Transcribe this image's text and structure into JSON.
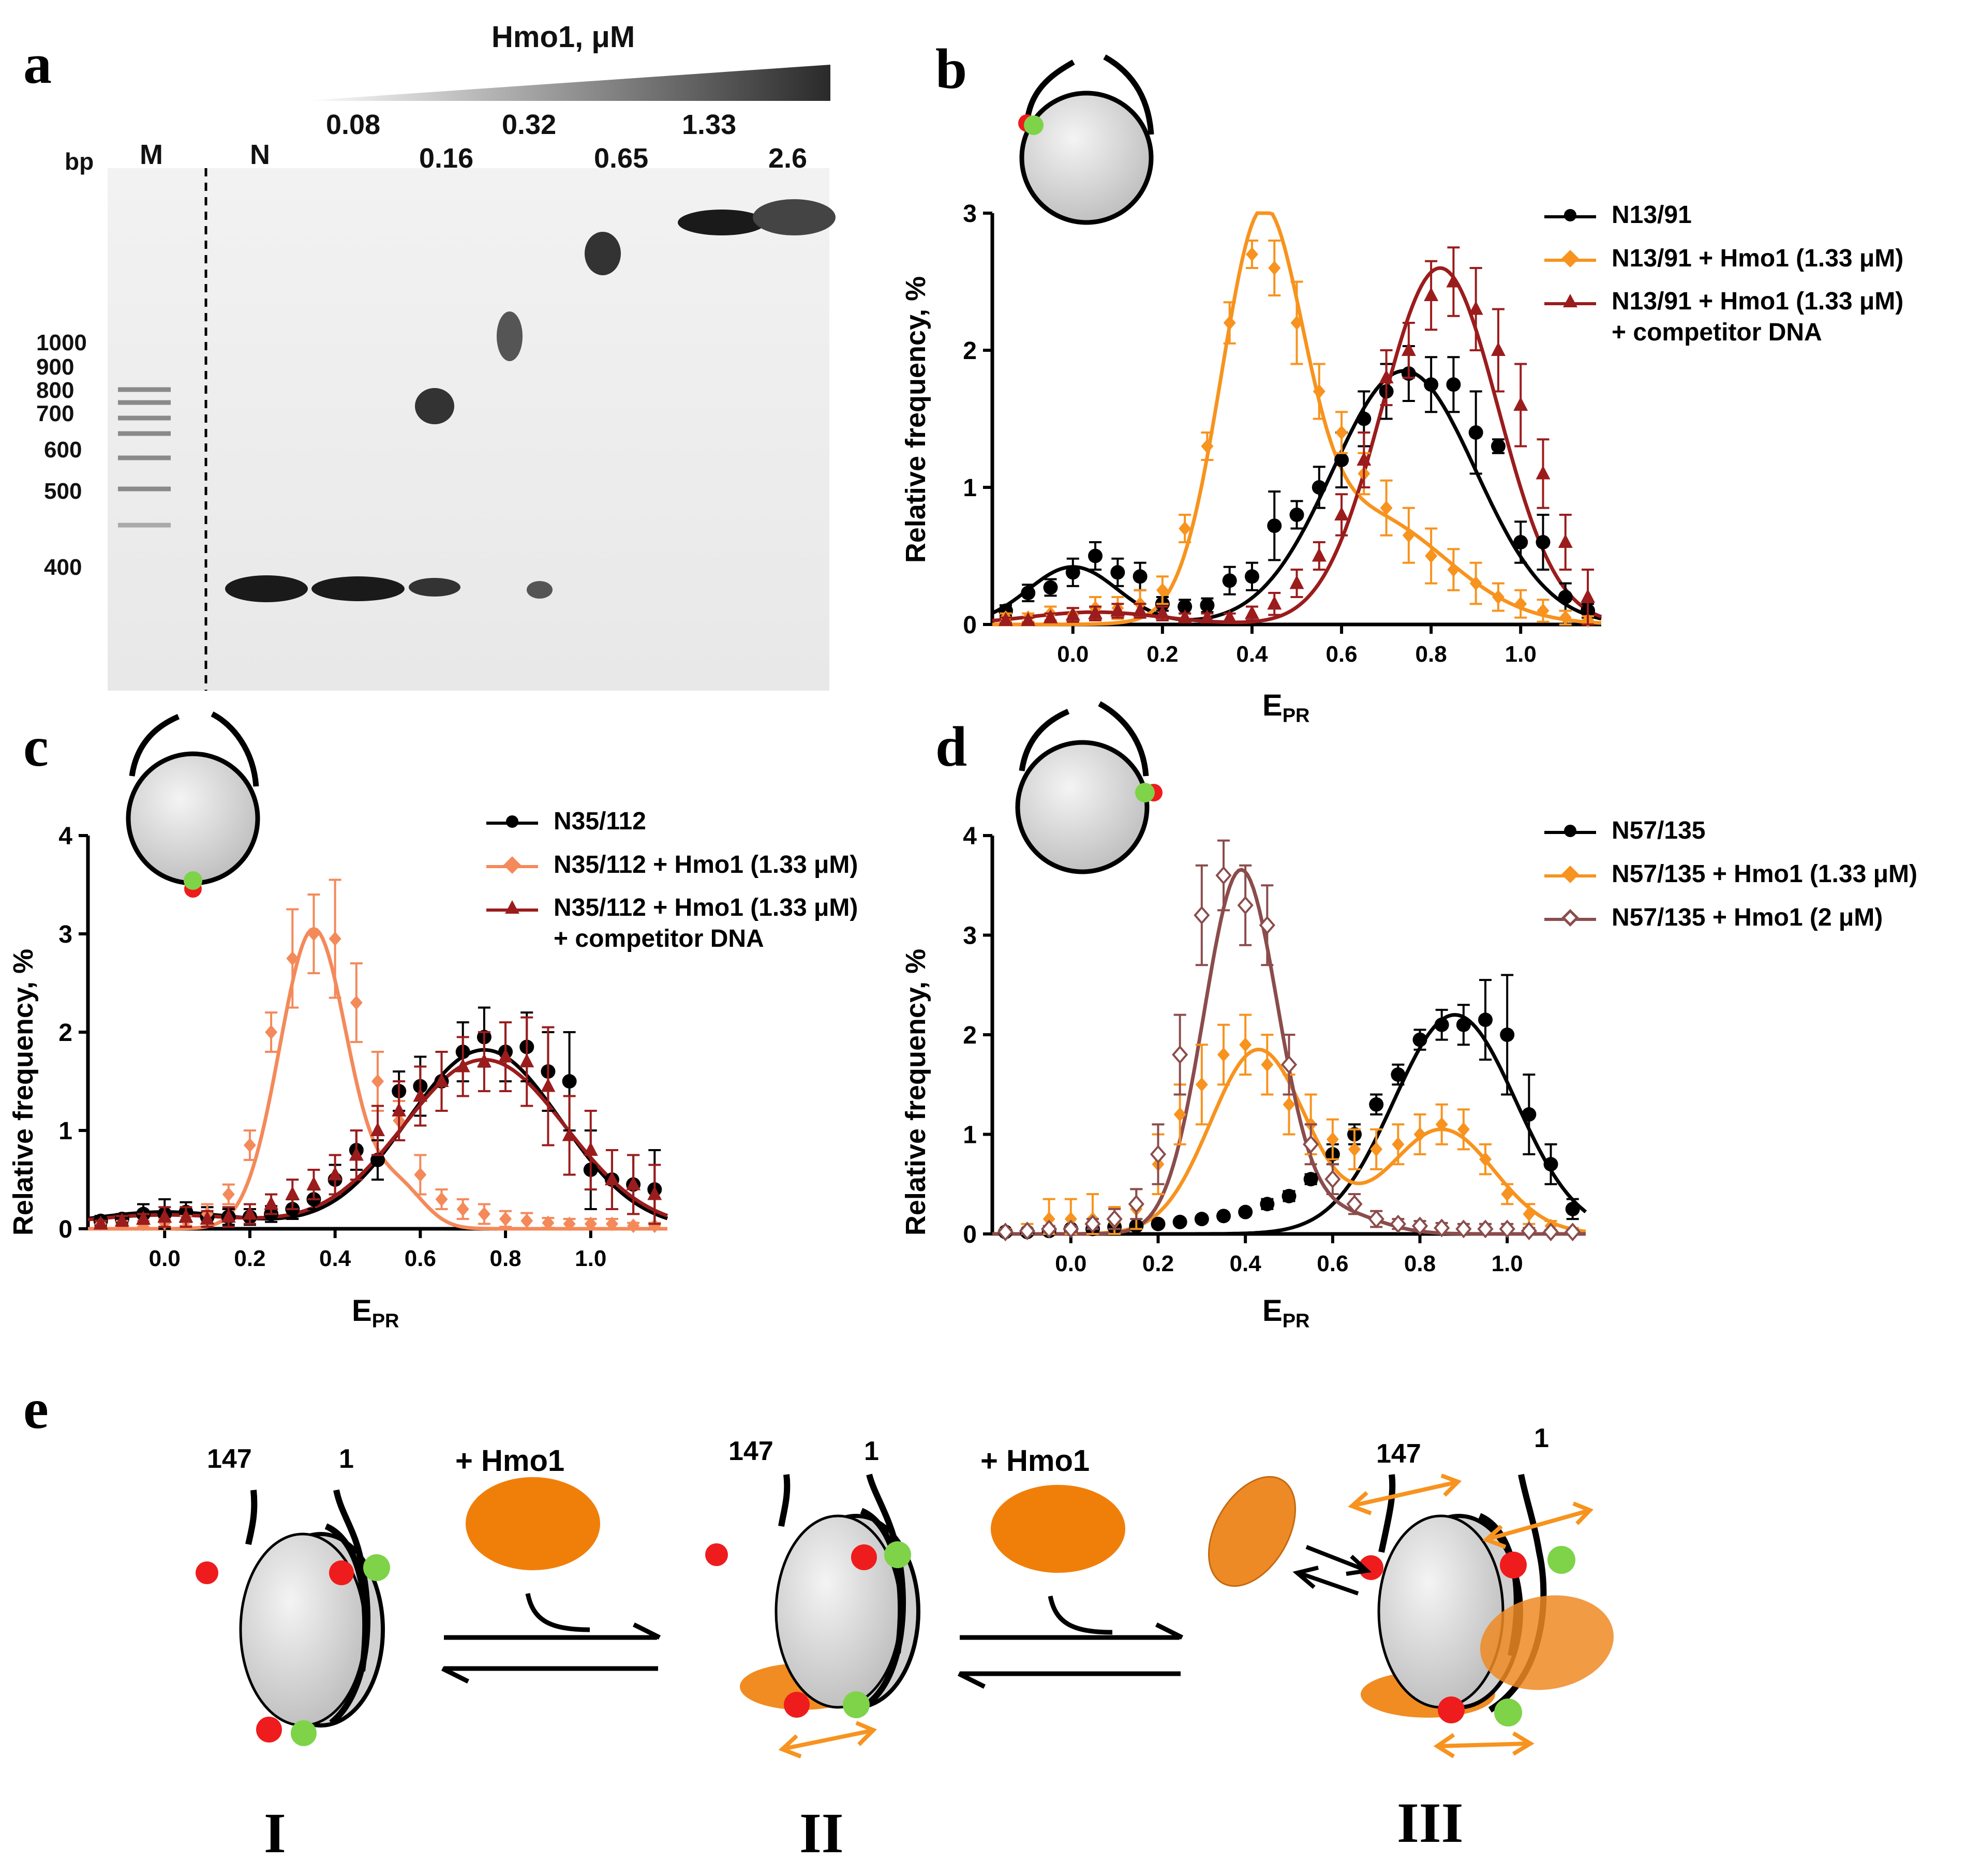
{
  "panels": {
    "a": "a",
    "b": "b",
    "c": "c",
    "d": "d",
    "e": "e"
  },
  "gel": {
    "title": "Hmo1, μM",
    "bp_label": "bp",
    "lane_labels": [
      "M",
      "N"
    ],
    "concentrations": [
      "0.08",
      "0.16",
      "0.32",
      "0.65",
      "1.33",
      "2.6"
    ],
    "ladder": [
      "1000",
      "900",
      "800",
      "700",
      "600",
      "500",
      "400"
    ]
  },
  "plots": {
    "ylabel": "Relative frequency, %",
    "xlabel_main": "E",
    "xlabel_sub": "PR",
    "xticks": [
      "0.0",
      "0.2",
      "0.4",
      "0.6",
      "0.8",
      "1.0"
    ]
  },
  "legend_b": {
    "s1": "N13/91",
    "s2": "N13/91 + Hmo1 (1.33 μM)",
    "s3a": "N13/91 + Hmo1 (1.33 μM)",
    "s3b": "+ competitor DNA"
  },
  "legend_c": {
    "s1": "N35/112",
    "s2": "N35/112 + Hmo1 (1.33 μM)",
    "s3a": "N35/112 + Hmo1 (1.33 μM)",
    "s3b": "+ competitor DNA"
  },
  "legend_d": {
    "s1": "N57/135",
    "s2": "N57/135 + Hmo1 (1.33 μM)",
    "s3": "N57/135 + Hmo1 (2 μM)"
  },
  "scheme": {
    "step_label": "+ Hmo1",
    "end_left": "147",
    "end_right": "1",
    "stages": [
      "I",
      "II",
      "III"
    ]
  },
  "colors": {
    "free": "#000000",
    "orange": "#f7931e",
    "darkred": "#9b1c1c",
    "salmon": "#f4895a",
    "brown": "#8b4c4c",
    "hmo1": "#f07f0a",
    "donor": "#7ed348",
    "acceptor": "#ee1c1c"
  },
  "chart_data": [
    {
      "panel": "b",
      "type": "scatter",
      "xlabel": "EPR",
      "ylabel": "Relative frequency, %",
      "xlim": [
        -0.18,
        1.18
      ],
      "ylim": [
        0,
        3
      ],
      "yticks": [
        0,
        1,
        2,
        3
      ],
      "x": [
        -0.15,
        -0.1,
        -0.05,
        0.0,
        0.05,
        0.1,
        0.15,
        0.2,
        0.25,
        0.3,
        0.35,
        0.4,
        0.45,
        0.5,
        0.55,
        0.6,
        0.65,
        0.7,
        0.75,
        0.8,
        0.85,
        0.9,
        0.95,
        1.0,
        1.05,
        1.1,
        1.15
      ],
      "series": [
        {
          "name": "N13/91",
          "color": "#000000",
          "marker": "circle",
          "values": [
            0.1,
            0.23,
            0.27,
            0.38,
            0.5,
            0.38,
            0.35,
            0.15,
            0.13,
            0.14,
            0.32,
            0.35,
            0.72,
            0.8,
            1.0,
            1.2,
            1.5,
            1.7,
            1.83,
            1.75,
            1.75,
            1.4,
            1.3,
            0.6,
            0.6,
            0.2,
            0.1
          ],
          "errors": [
            0.04,
            0.06,
            0.06,
            0.1,
            0.1,
            0.1,
            0.1,
            0.05,
            0.05,
            0.05,
            0.1,
            0.1,
            0.25,
            0.1,
            0.15,
            0.2,
            0.2,
            0.2,
            0.2,
            0.2,
            0.2,
            0.3,
            0.05,
            0.15,
            0.2,
            0.1,
            0.05
          ]
        },
        {
          "name": "N13/91 + Hmo1 (1.33 μM)",
          "color": "#f7931e",
          "marker": "diamond",
          "values": [
            0.05,
            0.05,
            0.08,
            0.07,
            0.12,
            0.12,
            0.15,
            0.25,
            0.7,
            1.3,
            2.2,
            2.7,
            2.6,
            2.2,
            1.7,
            1.4,
            1.1,
            0.85,
            0.65,
            0.5,
            0.4,
            0.3,
            0.2,
            0.15,
            0.1,
            0.05,
            0.03
          ],
          "errors": [
            0.03,
            0.03,
            0.05,
            0.05,
            0.08,
            0.08,
            0.1,
            0.1,
            0.1,
            0.1,
            0.15,
            0.1,
            0.2,
            0.3,
            0.2,
            0.15,
            0.15,
            0.2,
            0.2,
            0.2,
            0.15,
            0.15,
            0.1,
            0.1,
            0.08,
            0.05,
            0.03
          ]
        },
        {
          "name": "N13/91 + Hmo1 (1.33 μM) + competitor DNA",
          "color": "#9b1c1c",
          "marker": "triangle",
          "values": [
            0.03,
            0.03,
            0.05,
            0.07,
            0.08,
            0.1,
            0.1,
            0.08,
            0.05,
            0.05,
            0.05,
            0.08,
            0.15,
            0.3,
            0.5,
            0.8,
            1.2,
            1.8,
            2.0,
            2.4,
            2.5,
            2.3,
            2.0,
            1.6,
            1.1,
            0.6,
            0.2
          ],
          "errors": [
            0.02,
            0.02,
            0.03,
            0.05,
            0.05,
            0.05,
            0.05,
            0.05,
            0.03,
            0.03,
            0.03,
            0.05,
            0.08,
            0.1,
            0.1,
            0.15,
            0.2,
            0.2,
            0.2,
            0.25,
            0.25,
            0.3,
            0.3,
            0.3,
            0.25,
            0.2,
            0.2
          ]
        }
      ],
      "fits": [
        {
          "color": "#000000",
          "amp": [
            0.42,
            1.85
          ],
          "mu": [
            0.0,
            0.74
          ],
          "sigma": [
            0.1,
            0.16
          ]
        },
        {
          "color": "#f7931e",
          "amp": [
            2.68,
            0.8
          ],
          "mu": [
            0.42,
            0.65
          ],
          "sigma": [
            0.09,
            0.18
          ]
        },
        {
          "color": "#9b1c1c",
          "amp": [
            0.09,
            2.6
          ],
          "mu": [
            0.05,
            0.82
          ],
          "sigma": [
            0.15,
            0.13
          ]
        }
      ]
    },
    {
      "panel": "c",
      "type": "scatter",
      "xlabel": "EPR",
      "ylabel": "Relative frequency, %",
      "xlim": [
        -0.18,
        1.18
      ],
      "ylim": [
        0,
        4
      ],
      "yticks": [
        0,
        1,
        2,
        3,
        4
      ],
      "x": [
        -0.15,
        -0.1,
        -0.05,
        0.0,
        0.05,
        0.1,
        0.15,
        0.2,
        0.25,
        0.3,
        0.35,
        0.4,
        0.45,
        0.5,
        0.55,
        0.6,
        0.65,
        0.7,
        0.75,
        0.8,
        0.85,
        0.9,
        0.95,
        1.0,
        1.05,
        1.1,
        1.15
      ],
      "series": [
        {
          "name": "N35/112",
          "color": "#000000",
          "marker": "circle",
          "values": [
            0.08,
            0.1,
            0.15,
            0.15,
            0.17,
            0.12,
            0.12,
            0.12,
            0.15,
            0.2,
            0.3,
            0.5,
            0.8,
            0.7,
            1.4,
            1.45,
            1.5,
            1.8,
            1.95,
            1.8,
            1.85,
            1.6,
            1.5,
            0.6,
            0.5,
            0.45,
            0.4
          ],
          "errors": [
            0.05,
            0.05,
            0.1,
            0.15,
            0.1,
            0.1,
            0.08,
            0.08,
            0.08,
            0.1,
            0.1,
            0.15,
            0.2,
            0.2,
            0.2,
            0.3,
            0.3,
            0.3,
            0.3,
            0.3,
            0.35,
            0.4,
            0.5,
            0.4,
            0.3,
            0.3,
            0.4
          ]
        },
        {
          "name": "N35/112 + Hmo1 (1.33 μM)",
          "color": "#f4895a",
          "marker": "diamond",
          "values": [
            0.05,
            0.05,
            0.05,
            0.06,
            0.08,
            0.15,
            0.35,
            0.85,
            2.0,
            2.75,
            3.0,
            2.95,
            2.3,
            1.5,
            1.1,
            0.55,
            0.3,
            0.2,
            0.15,
            0.1,
            0.08,
            0.06,
            0.05,
            0.05,
            0.05,
            0.03,
            0.03
          ],
          "errors": [
            0.03,
            0.03,
            0.03,
            0.04,
            0.05,
            0.1,
            0.1,
            0.15,
            0.2,
            0.5,
            0.4,
            0.6,
            0.4,
            0.3,
            0.2,
            0.2,
            0.1,
            0.1,
            0.1,
            0.08,
            0.08,
            0.05,
            0.05,
            0.05,
            0.05,
            0.03,
            0.03
          ]
        },
        {
          "name": "N35/112 + Hmo1 (1.33 μM) + competitor DNA",
          "color": "#9b1c1c",
          "marker": "triangle",
          "values": [
            0.05,
            0.08,
            0.1,
            0.12,
            0.12,
            0.1,
            0.12,
            0.15,
            0.25,
            0.35,
            0.45,
            0.55,
            0.75,
            1.0,
            1.2,
            1.35,
            1.5,
            1.65,
            1.7,
            1.75,
            1.7,
            1.45,
            0.95,
            0.8,
            0.5,
            0.45,
            0.35
          ],
          "errors": [
            0.03,
            0.05,
            0.05,
            0.1,
            0.1,
            0.08,
            0.1,
            0.1,
            0.1,
            0.15,
            0.15,
            0.2,
            0.25,
            0.25,
            0.3,
            0.3,
            0.3,
            0.3,
            0.3,
            0.35,
            0.45,
            0.6,
            0.4,
            0.4,
            0.3,
            0.3,
            0.3
          ]
        }
      ],
      "fits": [
        {
          "color": "#000000",
          "amp": [
            0.17,
            1.82
          ],
          "mu": [
            0.0,
            0.75
          ],
          "sigma": [
            0.18,
            0.18
          ]
        },
        {
          "color": "#f4895a",
          "amp": [
            3.05,
            0.4
          ],
          "mu": [
            0.35,
            0.55
          ],
          "sigma": [
            0.08,
            0.06
          ]
        },
        {
          "color": "#9b1c1c",
          "amp": [
            0.14,
            1.72
          ],
          "mu": [
            0.0,
            0.75
          ],
          "sigma": [
            0.2,
            0.19
          ]
        }
      ]
    },
    {
      "panel": "d",
      "type": "scatter",
      "xlabel": "EPR",
      "ylabel": "Relative frequency, %",
      "xlim": [
        -0.18,
        1.18
      ],
      "ylim": [
        0,
        4
      ],
      "yticks": [
        0,
        1,
        2,
        3,
        4
      ],
      "x": [
        -0.15,
        -0.1,
        -0.05,
        0.0,
        0.05,
        0.1,
        0.15,
        0.2,
        0.25,
        0.3,
        0.35,
        0.4,
        0.45,
        0.5,
        0.55,
        0.6,
        0.65,
        0.7,
        0.75,
        0.8,
        0.85,
        0.9,
        0.95,
        1.0,
        1.05,
        1.1,
        1.15
      ],
      "series": [
        {
          "name": "N57/135",
          "color": "#000000",
          "marker": "circle",
          "values": [
            0.02,
            0.02,
            0.03,
            0.05,
            0.05,
            0.07,
            0.08,
            0.1,
            0.12,
            0.15,
            0.18,
            0.22,
            0.3,
            0.38,
            0.55,
            0.8,
            1.0,
            1.3,
            1.6,
            1.95,
            2.1,
            2.1,
            2.15,
            2.0,
            1.2,
            0.7,
            0.25
          ],
          "errors": [
            0.02,
            0.02,
            0.02,
            0.03,
            0.03,
            0.03,
            0.03,
            0.03,
            0.03,
            0.03,
            0.03,
            0.03,
            0.05,
            0.05,
            0.05,
            0.1,
            0.1,
            0.1,
            0.1,
            0.1,
            0.15,
            0.2,
            0.4,
            0.6,
            0.4,
            0.2,
            0.1
          ]
        },
        {
          "name": "N57/135 + Hmo1 (1.33 μM)",
          "color": "#f7931e",
          "marker": "diamond",
          "values": [
            0.03,
            0.05,
            0.15,
            0.15,
            0.15,
            0.12,
            0.25,
            0.7,
            1.2,
            1.5,
            1.8,
            1.9,
            1.7,
            1.3,
            1.1,
            0.95,
            0.85,
            0.85,
            0.9,
            1.0,
            1.1,
            1.05,
            0.75,
            0.4,
            0.2,
            0.08,
            0.03
          ],
          "errors": [
            0.02,
            0.05,
            0.2,
            0.2,
            0.25,
            0.15,
            0.2,
            0.3,
            0.3,
            0.4,
            0.3,
            0.3,
            0.3,
            0.3,
            0.3,
            0.2,
            0.2,
            0.2,
            0.2,
            0.2,
            0.2,
            0.2,
            0.15,
            0.1,
            0.1,
            0.05,
            0.03
          ]
        },
        {
          "name": "N57/135 + Hmo1 (2 μM)",
          "color": "#8b4c4c",
          "marker": "open-diamond",
          "values": [
            0.02,
            0.03,
            0.05,
            0.05,
            0.1,
            0.15,
            0.3,
            0.8,
            1.8,
            3.2,
            3.6,
            3.3,
            3.1,
            1.7,
            0.9,
            0.55,
            0.3,
            0.15,
            0.1,
            0.08,
            0.06,
            0.05,
            0.05,
            0.05,
            0.03,
            0.02,
            0.02
          ],
          "errors": [
            0.02,
            0.02,
            0.03,
            0.03,
            0.05,
            0.1,
            0.15,
            0.3,
            0.4,
            0.5,
            0.35,
            0.4,
            0.4,
            0.3,
            0.2,
            0.15,
            0.1,
            0.08,
            0.05,
            0.05,
            0.05,
            0.05,
            0.05,
            0.05,
            0.03,
            0.02,
            0.02
          ]
        }
      ],
      "fits": [
        {
          "color": "#000000",
          "amp": [
            0.0,
            2.2
          ],
          "mu": [
            0.5,
            0.88
          ],
          "sigma": [
            0.1,
            0.14
          ]
        },
        {
          "color": "#f7931e",
          "amp": [
            1.85,
            1.05
          ],
          "mu": [
            0.43,
            0.85
          ],
          "sigma": [
            0.11,
            0.12
          ]
        },
        {
          "color": "#8b4c4c",
          "amp": [
            3.65,
            0.2
          ],
          "mu": [
            0.39,
            0.62
          ],
          "sigma": [
            0.085,
            0.09
          ]
        }
      ]
    }
  ]
}
